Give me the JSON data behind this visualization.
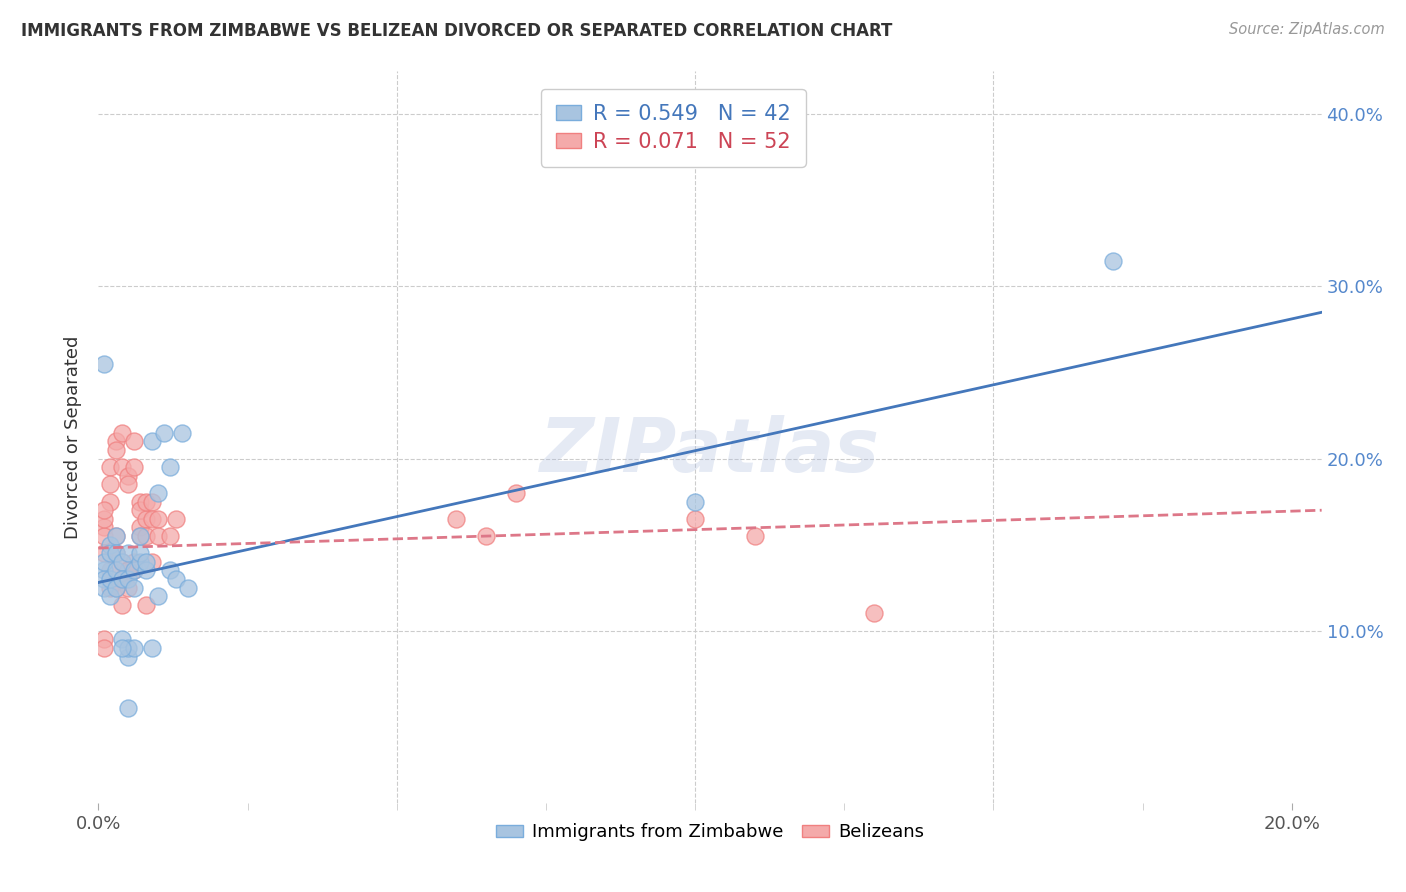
{
  "title": "IMMIGRANTS FROM ZIMBABWE VS BELIZEAN DIVORCED OR SEPARATED CORRELATION CHART",
  "source": "Source: ZipAtlas.com",
  "ylabel_label": "Divorced or Separated",
  "legend_entry1": "R = 0.549   N = 42",
  "legend_entry2": "R = 0.071   N = 52",
  "legend_label1": "Immigrants from Zimbabwe",
  "legend_label2": "Belizeans",
  "watermark": "ZIPatlas",
  "blue_color": "#A8C4E0",
  "pink_color": "#F4AAAA",
  "blue_edge_color": "#7AADDC",
  "pink_edge_color": "#F08080",
  "blue_line_color": "#4477BB",
  "pink_line_color": "#DD7788",
  "blue_scatter": [
    [
      0.001,
      0.135
    ],
    [
      0.001,
      0.13
    ],
    [
      0.001,
      0.125
    ],
    [
      0.001,
      0.14
    ],
    [
      0.002,
      0.15
    ],
    [
      0.002,
      0.145
    ],
    [
      0.002,
      0.12
    ],
    [
      0.002,
      0.13
    ],
    [
      0.003,
      0.155
    ],
    [
      0.003,
      0.145
    ],
    [
      0.003,
      0.135
    ],
    [
      0.003,
      0.125
    ],
    [
      0.004,
      0.14
    ],
    [
      0.004,
      0.13
    ],
    [
      0.004,
      0.095
    ],
    [
      0.005,
      0.145
    ],
    [
      0.005,
      0.13
    ],
    [
      0.005,
      0.085
    ],
    [
      0.005,
      0.09
    ],
    [
      0.006,
      0.135
    ],
    [
      0.006,
      0.125
    ],
    [
      0.006,
      0.09
    ],
    [
      0.007,
      0.14
    ],
    [
      0.007,
      0.145
    ],
    [
      0.007,
      0.155
    ],
    [
      0.008,
      0.135
    ],
    [
      0.008,
      0.14
    ],
    [
      0.001,
      0.255
    ],
    [
      0.009,
      0.21
    ],
    [
      0.011,
      0.215
    ],
    [
      0.012,
      0.195
    ],
    [
      0.01,
      0.18
    ],
    [
      0.012,
      0.135
    ],
    [
      0.013,
      0.13
    ],
    [
      0.014,
      0.215
    ],
    [
      0.015,
      0.125
    ],
    [
      0.009,
      0.09
    ],
    [
      0.01,
      0.12
    ],
    [
      0.005,
      0.055
    ],
    [
      0.17,
      0.315
    ],
    [
      0.1,
      0.175
    ],
    [
      0.004,
      0.09
    ]
  ],
  "pink_scatter": [
    [
      0.001,
      0.16
    ],
    [
      0.001,
      0.155
    ],
    [
      0.001,
      0.145
    ],
    [
      0.001,
      0.095
    ],
    [
      0.002,
      0.195
    ],
    [
      0.002,
      0.185
    ],
    [
      0.002,
      0.175
    ],
    [
      0.002,
      0.135
    ],
    [
      0.003,
      0.21
    ],
    [
      0.003,
      0.205
    ],
    [
      0.003,
      0.155
    ],
    [
      0.003,
      0.145
    ],
    [
      0.004,
      0.215
    ],
    [
      0.004,
      0.195
    ],
    [
      0.004,
      0.14
    ],
    [
      0.004,
      0.13
    ],
    [
      0.005,
      0.19
    ],
    [
      0.005,
      0.185
    ],
    [
      0.005,
      0.135
    ],
    [
      0.005,
      0.125
    ],
    [
      0.006,
      0.21
    ],
    [
      0.006,
      0.195
    ],
    [
      0.006,
      0.14
    ],
    [
      0.006,
      0.135
    ],
    [
      0.007,
      0.175
    ],
    [
      0.007,
      0.16
    ],
    [
      0.007,
      0.155
    ],
    [
      0.007,
      0.17
    ],
    [
      0.008,
      0.165
    ],
    [
      0.008,
      0.155
    ],
    [
      0.008,
      0.175
    ],
    [
      0.008,
      0.115
    ],
    [
      0.001,
      0.165
    ],
    [
      0.001,
      0.17
    ],
    [
      0.001,
      0.09
    ],
    [
      0.009,
      0.175
    ],
    [
      0.009,
      0.165
    ],
    [
      0.009,
      0.14
    ],
    [
      0.01,
      0.165
    ],
    [
      0.01,
      0.155
    ],
    [
      0.012,
      0.155
    ],
    [
      0.013,
      0.165
    ],
    [
      0.06,
      0.165
    ],
    [
      0.065,
      0.155
    ],
    [
      0.1,
      0.165
    ],
    [
      0.11,
      0.155
    ],
    [
      0.07,
      0.18
    ],
    [
      0.13,
      0.11
    ],
    [
      0.002,
      0.125
    ],
    [
      0.003,
      0.125
    ],
    [
      0.004,
      0.115
    ],
    [
      0.005,
      0.135
    ]
  ],
  "xlim": [
    0.0,
    0.205
  ],
  "ylim": [
    0.0,
    0.425
  ],
  "xtick_minor_positions": [
    0.025,
    0.05,
    0.075,
    0.1,
    0.125,
    0.15,
    0.175,
    0.2
  ],
  "blue_line_x": [
    0.0,
    0.205
  ],
  "blue_line_y": [
    0.128,
    0.285
  ],
  "pink_line_x": [
    0.0,
    0.205
  ],
  "pink_line_y": [
    0.148,
    0.17
  ]
}
